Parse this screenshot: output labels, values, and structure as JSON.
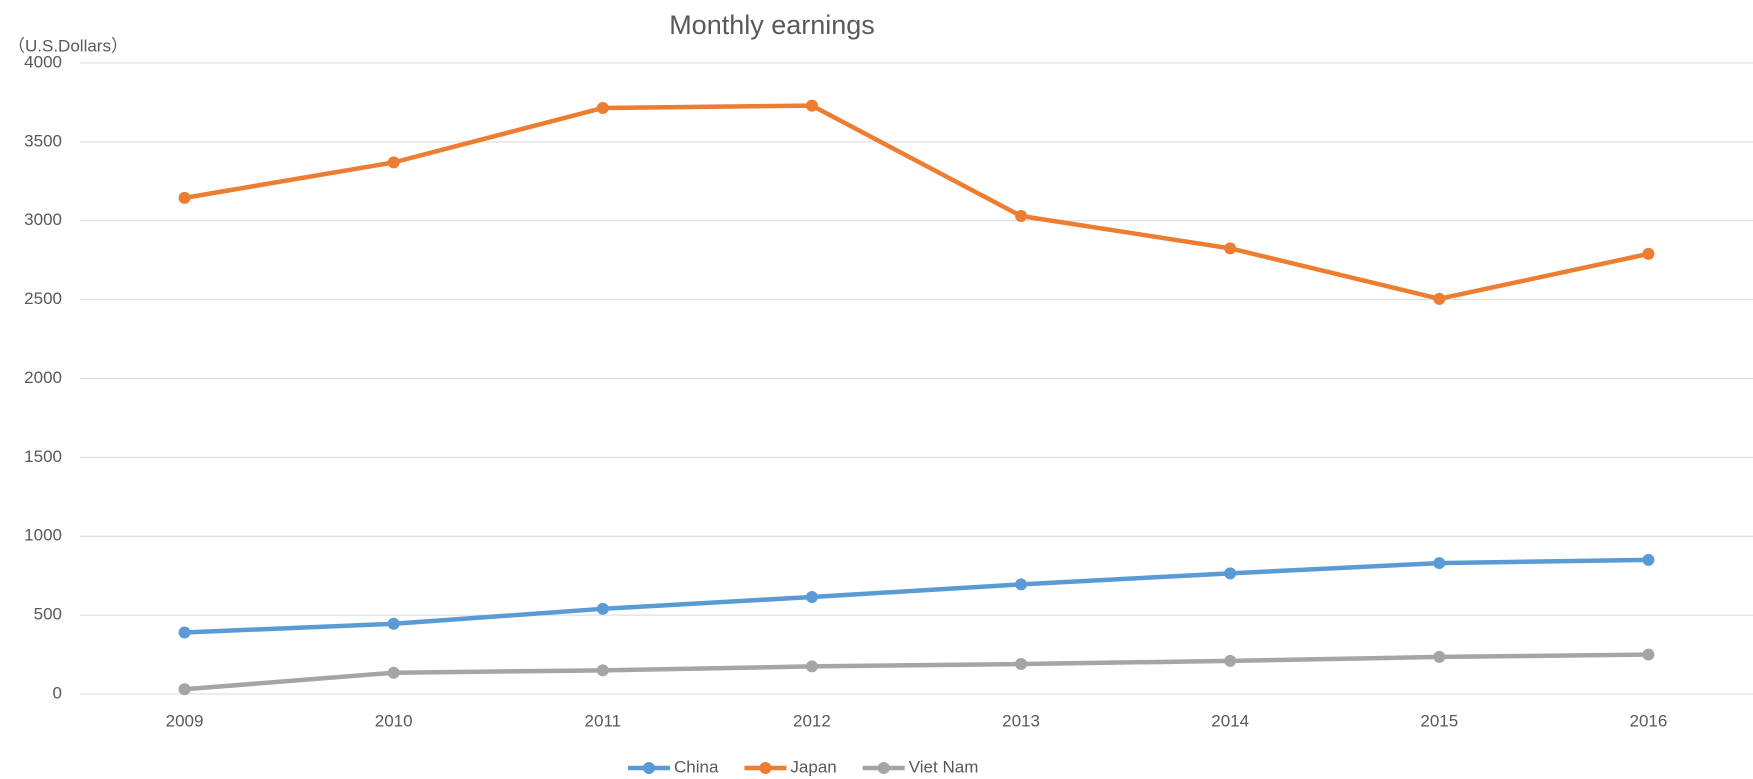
{
  "chart_data": {
    "type": "line",
    "title": "Monthly earnings",
    "y_label": "（U.S.Dollars）",
    "categories": [
      "2009",
      "2010",
      "2011",
      "2012",
      "2013",
      "2014",
      "2015",
      "2016"
    ],
    "series": [
      {
        "name": "China",
        "color": "#5b9bd5",
        "values": [
          390,
          445,
          540,
          615,
          695,
          765,
          830,
          850
        ]
      },
      {
        "name": "Japan",
        "color": "#ed7d31",
        "values": [
          3145,
          3370,
          3715,
          3730,
          3030,
          2825,
          2505,
          2790
        ]
      },
      {
        "name": "Viet Nam",
        "color": "#a5a5a5",
        "values": [
          30,
          135,
          150,
          175,
          190,
          210,
          235,
          250
        ]
      }
    ],
    "ylim": [
      0,
      4000
    ],
    "yticks": [
      0,
      500,
      1000,
      1500,
      2000,
      2500,
      3000,
      3500,
      4000
    ],
    "grid": true,
    "legend": "bottom"
  }
}
